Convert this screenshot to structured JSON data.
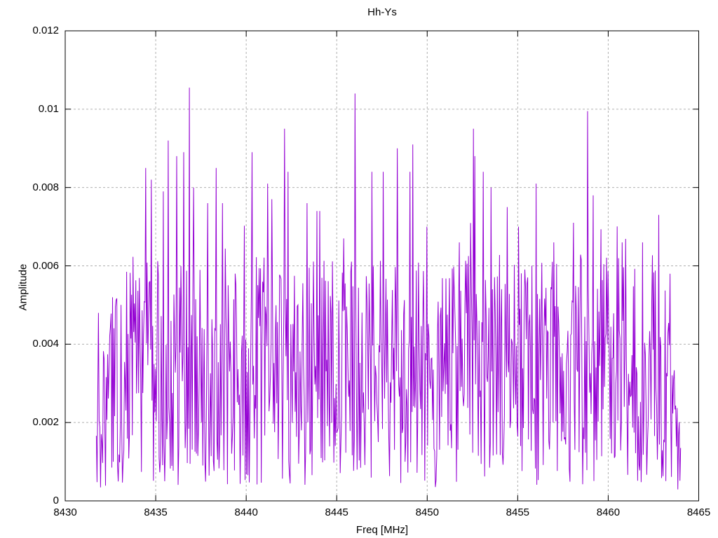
{
  "chart_data": {
    "type": "line",
    "title": "Hh-Ys",
    "xlabel": "Freq [MHz]",
    "ylabel": "Amplitude",
    "xlim": [
      8430,
      8465
    ],
    "ylim": [
      0,
      0.012
    ],
    "grid": true,
    "legend_position": "none",
    "xticks": {
      "values": [
        8430,
        8435,
        8440,
        8445,
        8450,
        8455,
        8460,
        8465
      ],
      "labels": [
        "8430",
        "8435",
        "8440",
        "8445",
        "8450",
        "8455",
        "8460",
        "8465"
      ]
    },
    "yticks": {
      "values": [
        0,
        0.002,
        0.004,
        0.006,
        0.008,
        0.01,
        0.012
      ],
      "labels": [
        "0",
        "0.002",
        "0.004",
        "0.006",
        "0.008",
        "0.01",
        "0.012"
      ]
    },
    "series": [
      {
        "name": "Hh-Ys",
        "color": "#9400d3",
        "x_start": 8431.72,
        "x_end": 8464.0,
        "n_points": 830,
        "noise": {
          "seed": 88675123,
          "min": 0.0004,
          "max": 0.0063,
          "boost_prob": 0.05,
          "boost_max": 0.0012
        },
        "envelope": [
          [
            8431.72,
            0.5
          ],
          [
            8432.6,
            0.92
          ],
          [
            8433.2,
            1.0
          ],
          [
            8449.85,
            1.0
          ],
          [
            8450.3,
            0.55
          ],
          [
            8450.9,
            1.0
          ],
          [
            8462.9,
            1.0
          ],
          [
            8463.5,
            0.7
          ],
          [
            8464.0,
            0.3
          ]
        ],
        "peaks": [
          [
            8431.82,
            0.0048
          ],
          [
            8434.43,
            0.0085
          ],
          [
            8434.76,
            0.0082
          ],
          [
            8435.4,
            0.0079
          ],
          [
            8435.71,
            0.0092
          ],
          [
            8436.16,
            0.0088
          ],
          [
            8436.55,
            0.0089
          ],
          [
            8436.86,
            0.01055
          ],
          [
            8437.09,
            0.008
          ],
          [
            8437.86,
            0.0076
          ],
          [
            8438.33,
            0.0085
          ],
          [
            8438.68,
            0.0076
          ],
          [
            8440.32,
            0.0089
          ],
          [
            8441.18,
            0.0081
          ],
          [
            8441.42,
            0.0077
          ],
          [
            8442.1,
            0.0095
          ],
          [
            8442.3,
            0.0084
          ],
          [
            8443.37,
            0.0076
          ],
          [
            8443.9,
            0.0074
          ],
          [
            8444.05,
            0.0074
          ],
          [
            8445.38,
            0.0067
          ],
          [
            8446.01,
            0.0104
          ],
          [
            8446.93,
            0.0084
          ],
          [
            8447.58,
            0.0084
          ],
          [
            8448.35,
            0.009
          ],
          [
            8449.03,
            0.0084
          ],
          [
            8449.22,
            0.0091
          ],
          [
            8449.99,
            0.007
          ],
          [
            8451.77,
            0.0066
          ],
          [
            8452.54,
            0.0095
          ],
          [
            8452.62,
            0.0088
          ],
          [
            8453.1,
            0.0084
          ],
          [
            8453.51,
            0.008
          ],
          [
            8454.41,
            0.0075
          ],
          [
            8455.06,
            0.007
          ],
          [
            8456.03,
            0.0081
          ],
          [
            8457.0,
            0.0066
          ],
          [
            8458.09,
            0.0071
          ],
          [
            8458.86,
            0.00995
          ],
          [
            8459.17,
            0.0078
          ],
          [
            8460.76,
            0.0066
          ],
          [
            8461.88,
            0.0066
          ],
          [
            8462.81,
            0.0073
          ],
          [
            8463.4,
            0.0058
          ]
        ]
      }
    ]
  },
  "colors": {
    "trace": "#9400d3",
    "grid": "#b0b0b0",
    "axis": "#000000",
    "background": "#ffffff",
    "text": "#000000"
  }
}
